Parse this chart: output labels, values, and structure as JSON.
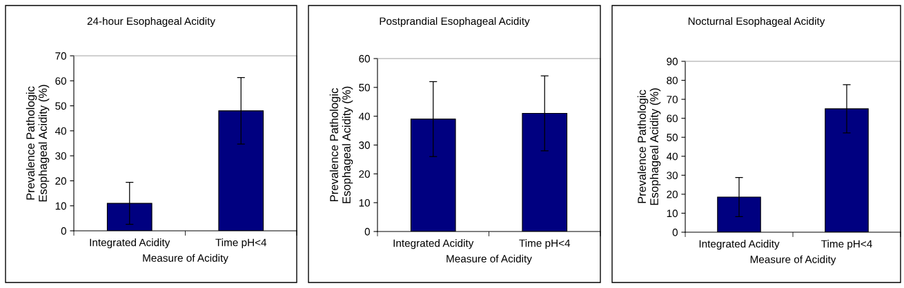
{
  "chart_data": [
    {
      "type": "bar",
      "title": "24-hour Esophageal Acidity",
      "xlabel": "Measure of Acidity",
      "ylabel": "Prevalence Pathologic\nEsophageal Acidity (%)",
      "categories": [
        "Integrated Acidity",
        "Time pH<4"
      ],
      "values": [
        11,
        48
      ],
      "errors": [
        8.4,
        13.3
      ],
      "color": "#000080",
      "ylim": [
        0,
        70
      ],
      "yticks": [
        0,
        10,
        20,
        30,
        40,
        50,
        60,
        70
      ],
      "grid": false,
      "legend": false
    },
    {
      "type": "bar",
      "title": "Postprandial Esophageal Acidity",
      "xlabel": "Measure of Acidity",
      "ylabel": "Prevalence Pathologic\nEsophageal Acidity (%)",
      "categories": [
        "Integrated Acidity",
        "Time pH<4"
      ],
      "values": [
        39,
        41
      ],
      "errors": [
        13,
        13
      ],
      "color": "#000080",
      "ylim": [
        0,
        60
      ],
      "yticks": [
        0,
        10,
        20,
        30,
        40,
        50,
        60
      ],
      "grid": false,
      "legend": false
    },
    {
      "type": "bar",
      "title": "Nocturnal Esophageal Acidity",
      "xlabel": "Measure of Acidity",
      "ylabel": "Prevalence Pathologic\nEsophageal Acidity (%)",
      "categories": [
        "Integrated Acidity",
        "Time pH<4"
      ],
      "values": [
        18.5,
        65
      ],
      "errors": [
        10.3,
        12.7
      ],
      "color": "#000080",
      "ylim": [
        0,
        90
      ],
      "yticks": [
        0,
        10,
        20,
        30,
        40,
        50,
        60,
        70,
        80,
        90
      ],
      "grid": false,
      "legend": false
    }
  ]
}
